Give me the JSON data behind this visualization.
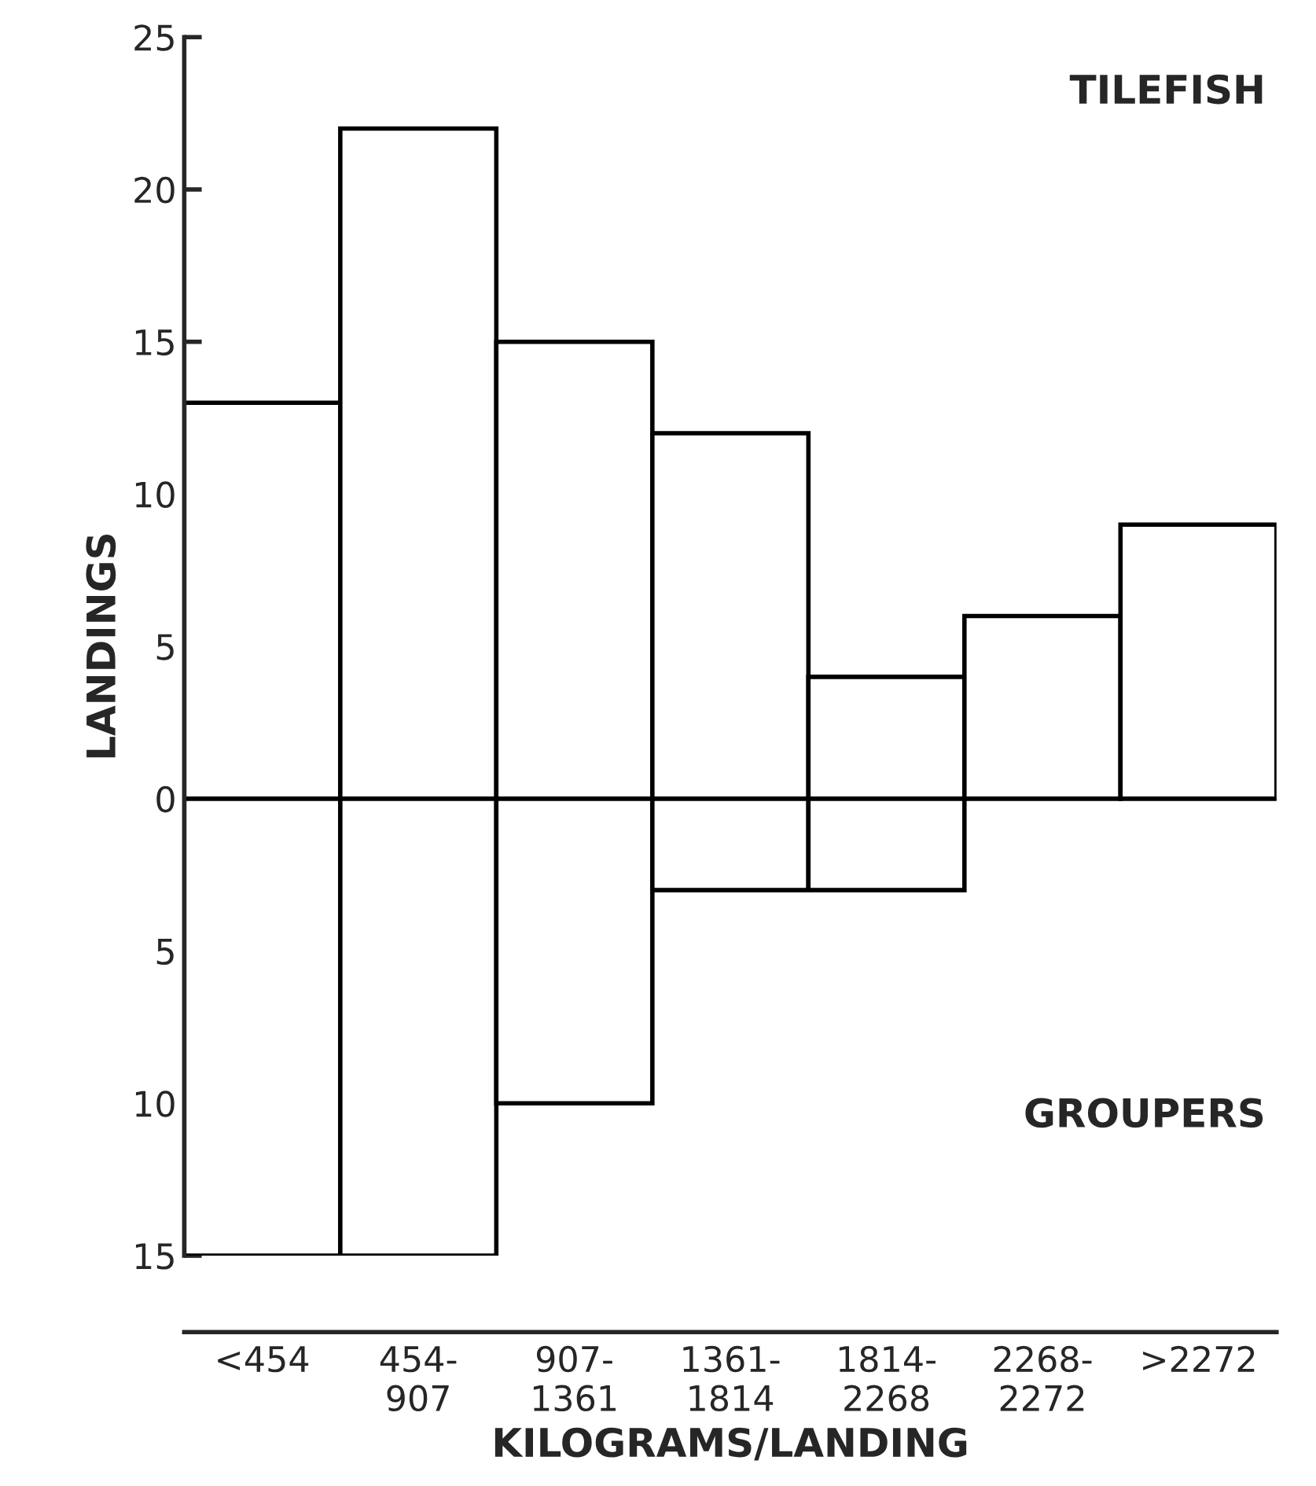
{
  "chart_data": {
    "type": "bar",
    "xlabel": "KILOGRAMS/LANDING",
    "ylabel": "LANDINGS",
    "categories": [
      "<454",
      "454-\n907",
      "907-\n1361",
      "1361-\n1814",
      "1814-\n2268",
      "2268-\n2272",
      ">2272"
    ],
    "series": [
      {
        "color": "#ffffff",
        "values": [
          13,
          22,
          15,
          12,
          4,
          6,
          9
        ]
      },
      {
        "color": "#ffffff",
        "values": [
          -15,
          -15,
          -10,
          -3,
          -3,
          null,
          null
        ]
      }
    ],
    "stacked": true,
    "annotations": [
      "TILEFISH",
      "GROUPERS"
    ],
    "ylim": [
      -15,
      25
    ],
    "yticks": [
      {
        "value": -15,
        "label": "15"
      },
      {
        "value": -10,
        "label": "10"
      },
      {
        "value": -5,
        "label": "5"
      },
      0,
      5,
      10,
      15,
      20,
      25
    ],
    "ref_lines": [
      {
        "axis": "y",
        "value": 0,
        "color": "#000000"
      }
    ],
    "grid": false,
    "legend": false
  }
}
